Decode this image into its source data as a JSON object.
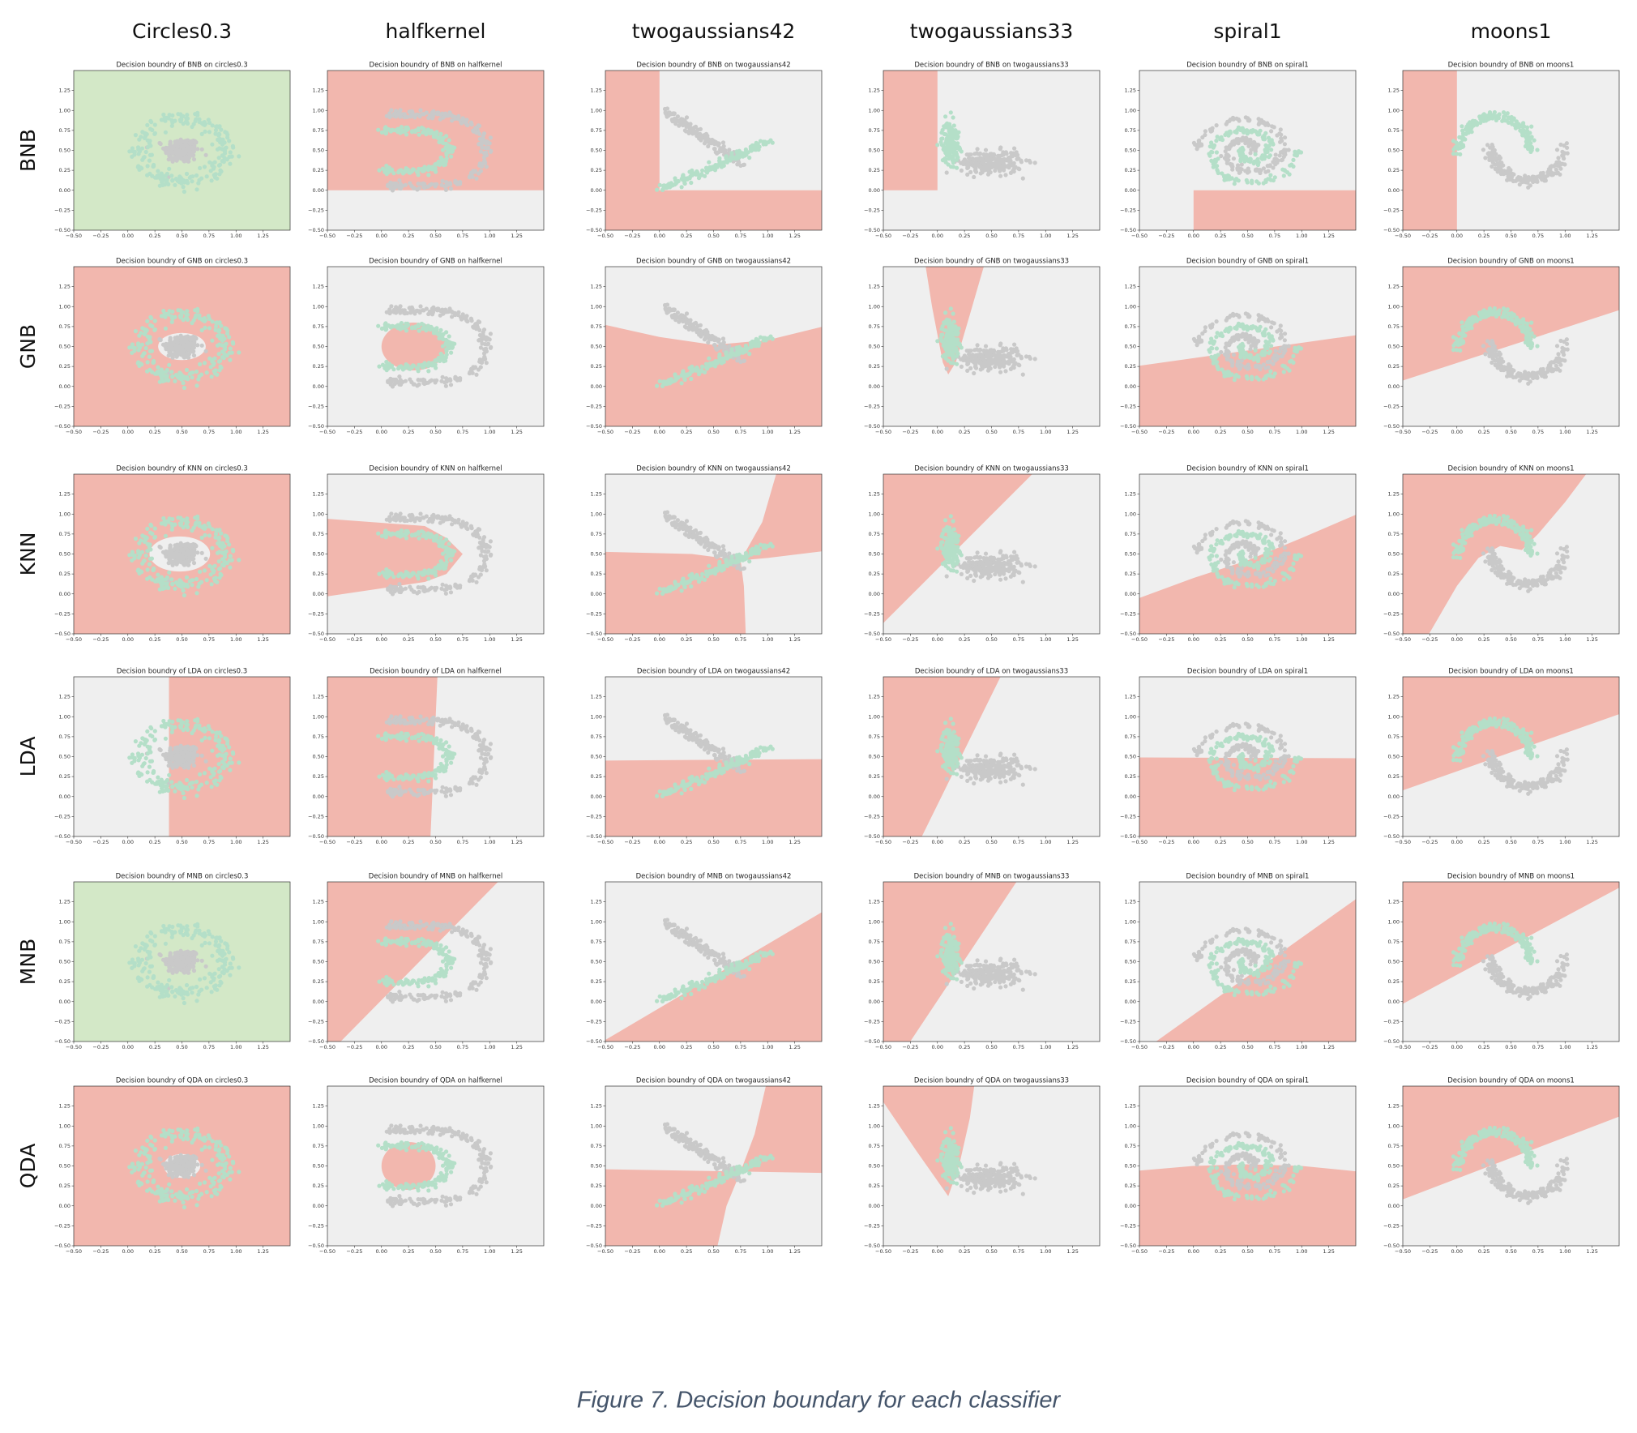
{
  "columns": [
    "Circles0.3",
    "halfkernel",
    "twogaussians42",
    "twogaussians33",
    "spiral1",
    "moons1"
  ],
  "rows": [
    {
      "label": "BNB",
      "titles": [
        "Decision boundry of BNB on circles0.3",
        "Decision boundry of BNB on halfkernel",
        "Decision boundry of BNB on twogaussians42",
        "Decision boundry of BNB on twogaussians33",
        "Decision boundry of BNB on spiral1",
        "Decision boundry of BNB on moons1"
      ]
    },
    {
      "label": "GNB",
      "titles": [
        "Decision boundry of GNB on circles0.3",
        "Decision boundry of GNB on halfkernel",
        "Decision boundry of GNB on twogaussians42",
        "Decision boundry of GNB on twogaussians33",
        "Decision boundry of GNB on spiral1",
        "Decision boundry of GNB on moons1"
      ]
    },
    {
      "label": "KNN",
      "titles": [
        "Decision boundry of KNN on circles0.3",
        "Decision boundry of KNN on halfkernel",
        "Decision boundry of KNN on twogaussians42",
        "Decision boundry of KNN on twogaussians33",
        "Decision boundry of KNN on spiral1",
        "Decision boundry of KNN on moons1"
      ]
    },
    {
      "label": "LDA",
      "titles": [
        "Decision boundry of LDA on circles0.3",
        "Decision boundry of LDA on halfkernel",
        "Decision boundry of LDA on twogaussians42",
        "Decision boundry of LDA on twogaussians33",
        "Decision boundry of LDA on spiral1",
        "Decision boundry of LDA on moons1"
      ]
    },
    {
      "label": "MNB",
      "titles": [
        "Decision boundry of MNB on circles0.3",
        "Decision boundry of MNB on halfkernel",
        "Decision boundry of MNB on twogaussians42",
        "Decision boundry of MNB on twogaussians33",
        "Decision boundry of MNB on spiral1",
        "Decision boundry of MNB on moons1"
      ]
    },
    {
      "label": "QDA",
      "titles": [
        "Decision boundry of QDA on circles0.3",
        "Decision boundry of QDA on halfkernel",
        "Decision boundry of QDA on twogaussians42",
        "Decision boundry of QDA on twogaussians33",
        "Decision boundry of QDA on spiral1",
        "Decision boundry of QDA on moons1"
      ]
    }
  ],
  "axis_range": [
    -0.5,
    1.5
  ],
  "ticks": [
    {
      "value": -0.5,
      "label": "−0.50"
    },
    {
      "value": -0.25,
      "label": "−0.25"
    },
    {
      "value": 0,
      "label": "0.00"
    },
    {
      "value": 0.25,
      "label": "0.25"
    },
    {
      "value": 0.5,
      "label": "0.50"
    },
    {
      "value": 0.75,
      "label": "0.75"
    },
    {
      "value": 1,
      "label": "1.00"
    },
    {
      "value": 1.25,
      "label": "1.25"
    }
  ],
  "caption": "Figure 7. Decision boundary for each classifier"
}
